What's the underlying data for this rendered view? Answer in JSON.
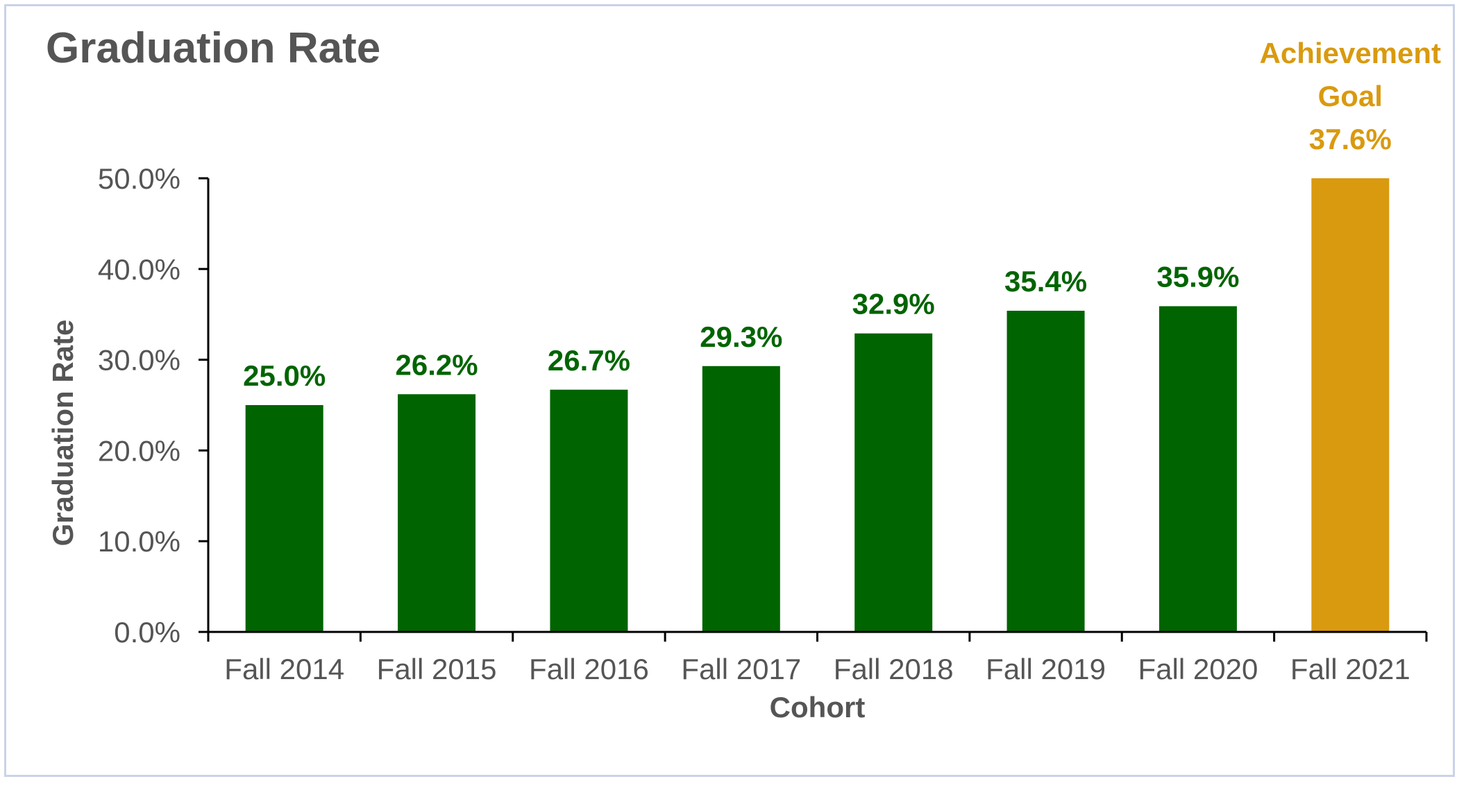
{
  "chart_data": {
    "type": "bar",
    "title": "Graduation Rate",
    "xlabel": "Cohort",
    "ylabel": "Graduation Rate",
    "categories": [
      "Fall 2014",
      "Fall 2015",
      "Fall 2016",
      "Fall 2017",
      "Fall 2018",
      "Fall 2019",
      "Fall 2020",
      "Fall 2021"
    ],
    "values": [
      25.0,
      26.2,
      26.7,
      29.3,
      32.9,
      35.4,
      35.9,
      50.0
    ],
    "data_labels": [
      "25.0%",
      "26.2%",
      "26.7%",
      "29.3%",
      "32.9%",
      "35.4%",
      "35.9%",
      ""
    ],
    "ylim": [
      0,
      50
    ],
    "yticks": [
      0,
      10,
      20,
      30,
      40,
      50
    ],
    "ytick_labels": [
      "0.0%",
      "10.0%",
      "20.0%",
      "30.0%",
      "40.0%",
      "50.0%"
    ],
    "grid": false,
    "legend": "none",
    "annotation": {
      "lines": [
        "Achievement",
        "Goal",
        "37.6%"
      ],
      "category": "Fall 2021"
    },
    "colors": {
      "bar": "#006400",
      "goal_bar": "#d99a0f",
      "data_label": "#006400",
      "annotation": "#d99a0f",
      "axis": "#000000",
      "text": "#555555"
    }
  }
}
